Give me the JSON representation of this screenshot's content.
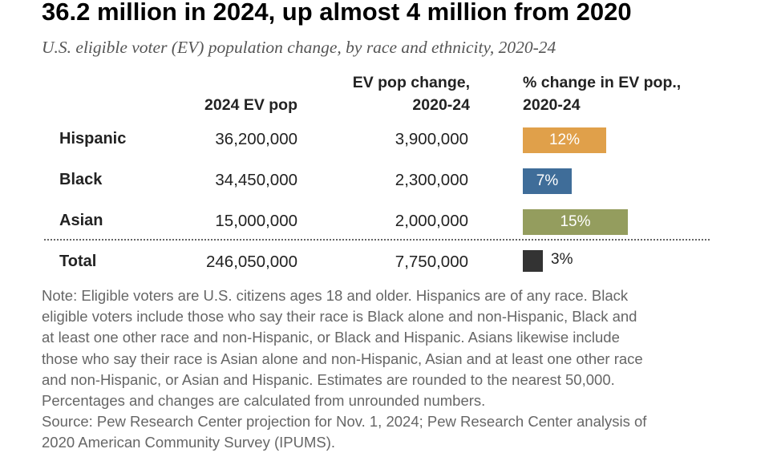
{
  "title": "36.2 million in 2024, up almost 4 million from 2020",
  "subtitle": "U.S. eligible voter (EV) population change, by race and ethnicity, 2020-24",
  "columns": {
    "ev_pop": "2024 EV pop",
    "change_line1": "EV pop change,",
    "change_line2": "2020-24",
    "pct_line1": "% change in EV pop.,",
    "pct_line2": "2020-24"
  },
  "chart_data": {
    "type": "table",
    "title": "36.2 million in 2024, up almost 4 million from 2020",
    "subtitle": "U.S. eligible voter (EV) population change, by race and ethnicity, 2020-24",
    "columns": [
      "2024 EV pop",
      "EV pop change, 2020-24",
      "% change in EV pop., 2020-24"
    ],
    "rows": [
      {
        "label": "Hispanic",
        "ev_pop": "36,200,000",
        "change": "3,900,000",
        "pct": 12,
        "pct_label": "12%",
        "color": "#E0A04A"
      },
      {
        "label": "Black",
        "ev_pop": "34,450,000",
        "change": "2,300,000",
        "pct": 7,
        "pct_label": "7%",
        "color": "#3F6D99"
      },
      {
        "label": "Asian",
        "ev_pop": "15,000,000",
        "change": "2,000,000",
        "pct": 15,
        "pct_label": "15%",
        "color": "#949D5E"
      }
    ],
    "total": {
      "label": "Total",
      "ev_pop": "246,050,000",
      "change": "7,750,000",
      "pct": 3,
      "pct_label": "3%",
      "color": "#333333"
    }
  },
  "note": [
    "Note: Eligible voters are U.S. citizens ages 18 and older. Hispanics are of any race. Black",
    "eligible voters include those who say their race is Black alone and non-Hispanic, Black and",
    "at least one other race and non-Hispanic, or Black and Hispanic. Asians likewise include",
    "those who say their race is Asian alone and non-Hispanic, Asian and at least one other race",
    "and non-Hispanic, or Asian and Hispanic. Estimates are rounded to the nearest 50,000.",
    "Percentages and changes are calculated from unrounded numbers.",
    "Source: Pew Research Center projection for Nov. 1, 2024; Pew Research Center analysis of",
    "2020 American Community Survey (IPUMS)."
  ]
}
